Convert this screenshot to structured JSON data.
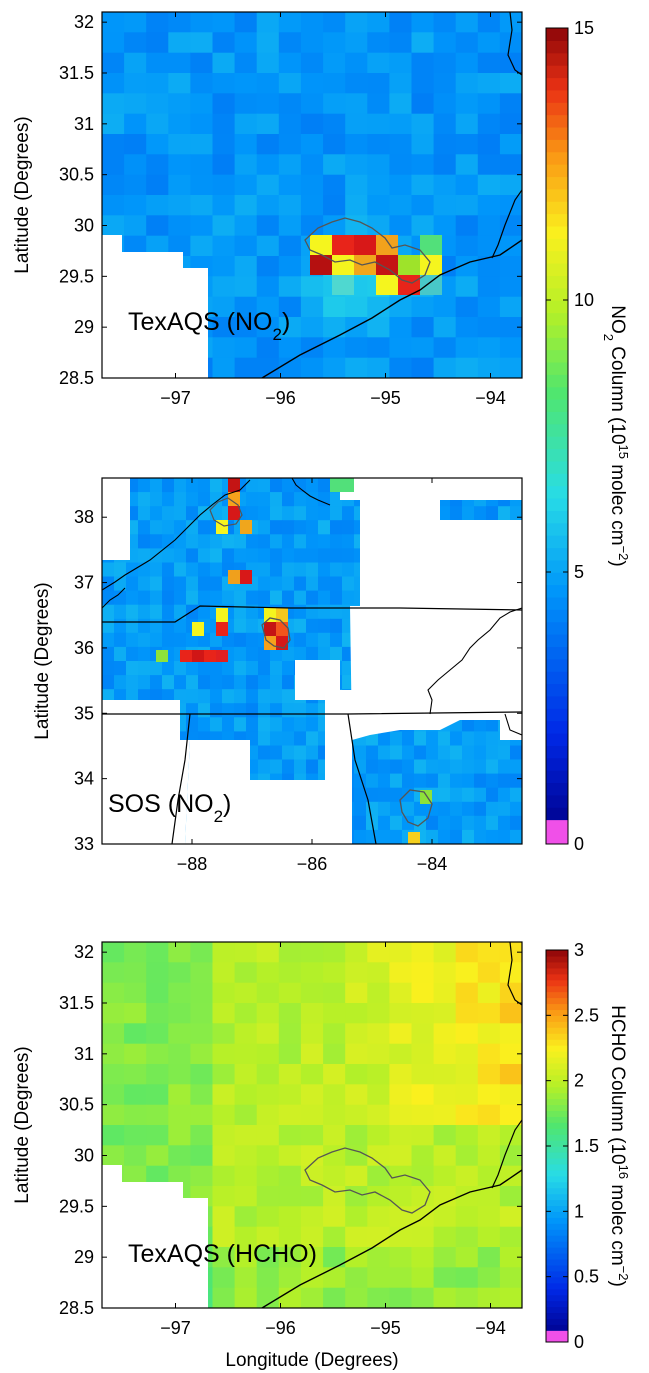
{
  "figure": {
    "panels": [
      {
        "id": "texaqs-no2",
        "label": "TexAQS (NO",
        "label_sub": "2",
        "label_end": ")",
        "ylabel": "Latitude (Degrees)",
        "xlabel": "",
        "xlim": [
          -97.7,
          -93.7
        ],
        "ylim": [
          28.5,
          32.1
        ],
        "xticks": [
          {
            "v": -97,
            "t": "−97"
          },
          {
            "v": -96,
            "t": "−96"
          },
          {
            "v": -95,
            "t": "−95"
          },
          {
            "v": -94,
            "t": "−94"
          }
        ],
        "yticks": [
          {
            "v": 28.5,
            "t": "28.5"
          },
          {
            "v": 29,
            "t": "29"
          },
          {
            "v": 29.5,
            "t": "29.5"
          },
          {
            "v": 30,
            "t": "30"
          },
          {
            "v": 30.5,
            "t": "30.5"
          },
          {
            "v": 31,
            "t": "31"
          },
          {
            "v": 31.5,
            "t": "31.5"
          },
          {
            "v": 32,
            "t": "32"
          }
        ]
      },
      {
        "id": "sos-no2",
        "label": "SOS (NO",
        "label_sub": "2",
        "label_end": ")",
        "ylabel": "Latitude (Degrees)",
        "xlabel": "",
        "xlim": [
          -89.5,
          -82.5
        ],
        "ylim": [
          33,
          38.6
        ],
        "xticks": [
          {
            "v": -88,
            "t": "−88"
          },
          {
            "v": -86,
            "t": "−86"
          },
          {
            "v": -84,
            "t": "−84"
          }
        ],
        "yticks": [
          {
            "v": 33,
            "t": "33"
          },
          {
            "v": 34,
            "t": "34"
          },
          {
            "v": 35,
            "t": "35"
          },
          {
            "v": 36,
            "t": "36"
          },
          {
            "v": 37,
            "t": "37"
          },
          {
            "v": 38,
            "t": "38"
          }
        ]
      },
      {
        "id": "texaqs-hcho",
        "label": "TexAQS (HCHO)",
        "label_sub": "",
        "label_end": "",
        "ylabel": "Latitude (Degrees)",
        "xlabel": "Longitude (Degrees)",
        "xlim": [
          -97.7,
          -93.7
        ],
        "ylim": [
          28.5,
          32.1
        ],
        "xticks": [
          {
            "v": -97,
            "t": "−97"
          },
          {
            "v": -96,
            "t": "−96"
          },
          {
            "v": -95,
            "t": "−95"
          },
          {
            "v": -94,
            "t": "−94"
          }
        ],
        "yticks": [
          {
            "v": 28.5,
            "t": "28.5"
          },
          {
            "v": 29,
            "t": "29"
          },
          {
            "v": 29.5,
            "t": "29.5"
          },
          {
            "v": 30,
            "t": "30"
          },
          {
            "v": 30.5,
            "t": "30.5"
          },
          {
            "v": 31,
            "t": "31"
          },
          {
            "v": 31.5,
            "t": "31.5"
          },
          {
            "v": 32,
            "t": "32"
          }
        ]
      }
    ],
    "colorbars": [
      {
        "id": "no2",
        "label_prefix": "NO",
        "label_sub": "2",
        "label_mid": " Column (10",
        "label_sup": "15",
        "label_tail": " molec cm",
        "label_sup2": "−2",
        "label_end": ")",
        "range": [
          0,
          15
        ],
        "ticks": [
          {
            "v": 0,
            "t": "0"
          },
          {
            "v": 5,
            "t": "5"
          },
          {
            "v": 10,
            "t": "10"
          },
          {
            "v": 15,
            "t": "15"
          }
        ]
      },
      {
        "id": "hcho",
        "label_prefix": "HCHO",
        "label_sub": "",
        "label_mid": " Column (10",
        "label_sup": "16",
        "label_tail": " molec cm",
        "label_sup2": "−2",
        "label_end": ")",
        "range": [
          0,
          3
        ],
        "ticks": [
          {
            "v": 0,
            "t": "0"
          },
          {
            "v": 0.5,
            "t": "0.5"
          },
          {
            "v": 1,
            "t": "1"
          },
          {
            "v": 1.5,
            "t": "1.5"
          },
          {
            "v": 2,
            "t": "2"
          },
          {
            "v": 2.5,
            "t": "2.5"
          },
          {
            "v": 3,
            "t": "3"
          }
        ]
      }
    ],
    "colors": {
      "background_field": "#2f9ff0",
      "hcho_field": "#c9ee28",
      "hotspot": "#e8241a",
      "frame": "#000000"
    }
  }
}
